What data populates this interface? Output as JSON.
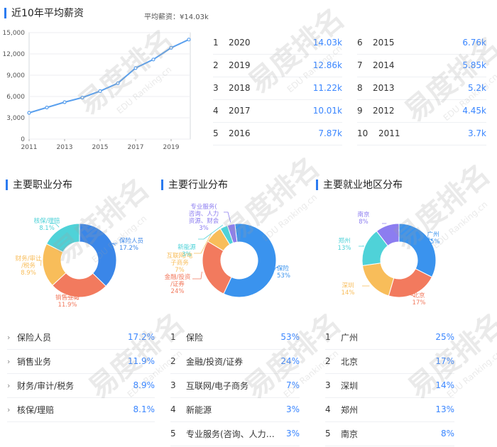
{
  "salary": {
    "title": "近10年平均薪资",
    "avg_label": "平均薪资：¥14.03k",
    "chart_data": {
      "type": "line",
      "x": [
        2011,
        2012,
        2013,
        2014,
        2015,
        2016,
        2017,
        2018,
        2019,
        2020
      ],
      "values": [
        3700,
        4450,
        5200,
        5850,
        6760,
        7870,
        10010,
        11220,
        12860,
        14030
      ],
      "xticks": [
        "2011",
        "2013",
        "2015",
        "2017",
        "2019"
      ],
      "yticks": [
        "0",
        "3,000",
        "6,000",
        "9,000",
        "12,000",
        "15,000"
      ],
      "ylim": [
        0,
        15000
      ],
      "color": "#5aa0ee"
    },
    "ranking": [
      {
        "num": "1",
        "year": "2020",
        "value": "14.03k"
      },
      {
        "num": "2",
        "year": "2019",
        "value": "12.86k"
      },
      {
        "num": "3",
        "year": "2018",
        "value": "11.22k"
      },
      {
        "num": "4",
        "year": "2017",
        "value": "10.01k"
      },
      {
        "num": "5",
        "year": "2016",
        "value": "7.87k"
      },
      {
        "num": "6",
        "year": "2015",
        "value": "6.76k"
      },
      {
        "num": "7",
        "year": "2014",
        "value": "5.85k"
      },
      {
        "num": "8",
        "year": "2013",
        "value": "5.2k"
      },
      {
        "num": "9",
        "year": "2012",
        "value": "4.45k"
      },
      {
        "num": "10",
        "year": "2011",
        "value": "3.7k"
      }
    ]
  },
  "occupation": {
    "title": "主要职业分布",
    "chart_data": {
      "type": "pie",
      "slices": [
        {
          "label": "保险人员",
          "pct": "17.2%",
          "value": 17.2,
          "color": "#3a86e8"
        },
        {
          "label": "销售业务",
          "pct": "11.9%",
          "value": 11.9,
          "color": "#f27a5e"
        },
        {
          "label": "财务/审计/税务",
          "pct": "8.9%",
          "value": 8.9,
          "color": "#f8bd5a"
        },
        {
          "label": "核保/理赔",
          "pct": "8.1%",
          "value": 8.1,
          "color": "#4fd2d8"
        }
      ]
    },
    "chart_labels": [
      {
        "name": "保险人员",
        "pct": "17.2%"
      },
      {
        "name": "销售业务",
        "pct": "11.9%"
      },
      {
        "name": "财务/审计\n/税务",
        "pct": "8.9%"
      },
      {
        "name": "核保/理赔",
        "pct": "8.1%"
      }
    ],
    "list": [
      {
        "label": "保险人员",
        "pct": "17.2%"
      },
      {
        "label": "销售业务",
        "pct": "11.9%"
      },
      {
        "label": "财务/审计/税务",
        "pct": "8.9%"
      },
      {
        "label": "核保/理赔",
        "pct": "8.1%"
      }
    ]
  },
  "industry": {
    "title": "主要行业分布",
    "chart_data": {
      "type": "pie",
      "slices": [
        {
          "label": "保险",
          "pct": "53%",
          "value": 53,
          "color": "#3a93ee"
        },
        {
          "label": "金融/投资/证券",
          "pct": "24%",
          "value": 24,
          "color": "#f27a5e"
        },
        {
          "label": "互联网/电子商务",
          "pct": "7%",
          "value": 7,
          "color": "#f8bd5a"
        },
        {
          "label": "新能源",
          "pct": "3%",
          "value": 3,
          "color": "#4fd2d8"
        },
        {
          "label": "专业服务(咨询、人力资源、财会)",
          "pct": "3%",
          "value": 3,
          "color": "#8c7df0"
        }
      ]
    },
    "chart_labels": [
      {
        "name": "保险",
        "pct": "53%"
      },
      {
        "name": "金融/投资\n/证券",
        "pct": "24%"
      },
      {
        "name": "互联网/电\n子商务",
        "pct": "7%"
      },
      {
        "name": "新能源",
        "pct": "3%"
      },
      {
        "name": "专业服务(\n咨询、人力\n资源、财会",
        "pct": "3%"
      }
    ],
    "list": [
      {
        "num": "1",
        "label": "保险",
        "pct": "53%"
      },
      {
        "num": "2",
        "label": "金融/投资/证券",
        "pct": "24%"
      },
      {
        "num": "3",
        "label": "互联网/电子商务",
        "pct": "7%"
      },
      {
        "num": "4",
        "label": "新能源",
        "pct": "3%"
      },
      {
        "num": "5",
        "label": "专业服务(咨询、人力资...",
        "pct": "3%"
      }
    ]
  },
  "region": {
    "title": "主要就业地区分布",
    "chart_data": {
      "type": "pie",
      "slices": [
        {
          "label": "广州",
          "pct": "25%",
          "value": 25,
          "color": "#3a93ee"
        },
        {
          "label": "北京",
          "pct": "17%",
          "value": 17,
          "color": "#f27a5e"
        },
        {
          "label": "深圳",
          "pct": "14%",
          "value": 14,
          "color": "#f8bd5a"
        },
        {
          "label": "郑州",
          "pct": "13%",
          "value": 13,
          "color": "#4fd2d8"
        },
        {
          "label": "南京",
          "pct": "8%",
          "value": 8,
          "color": "#8c7df0"
        }
      ]
    },
    "chart_labels": [
      {
        "name": "广州",
        "pct": "25%"
      },
      {
        "name": "北京",
        "pct": "17%"
      },
      {
        "name": "深圳",
        "pct": "14%"
      },
      {
        "name": "郑州",
        "pct": "13%"
      },
      {
        "name": "南京",
        "pct": "8%"
      }
    ],
    "list": [
      {
        "num": "1",
        "label": "广州",
        "pct": "25%"
      },
      {
        "num": "2",
        "label": "北京",
        "pct": "17%"
      },
      {
        "num": "3",
        "label": "深圳",
        "pct": "14%"
      },
      {
        "num": "4",
        "label": "郑州",
        "pct": "13%"
      },
      {
        "num": "5",
        "label": "南京",
        "pct": "8%"
      }
    ]
  },
  "watermark": {
    "text": "易度排名",
    "sub": "EDU Ranking.cn"
  }
}
